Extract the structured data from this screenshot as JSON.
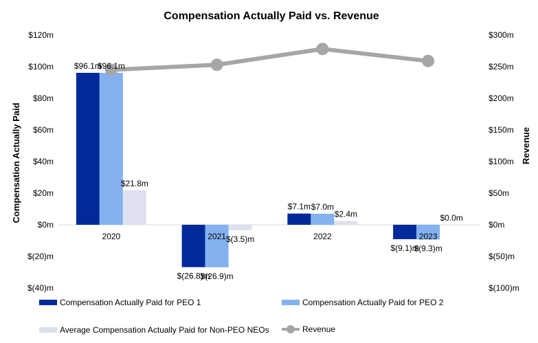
{
  "chart_data": {
    "type": "bar",
    "title": "Compensation Actually Paid vs. Revenue",
    "categories": [
      "2020",
      "2021",
      "2022",
      "2023"
    ],
    "ylabel": "Compensation Actually Paid",
    "y2label": "Revenue",
    "ylim": [
      -40,
      120
    ],
    "y2lim": [
      -100,
      300
    ],
    "yticks": [
      {
        "value": 120,
        "label": "$120m"
      },
      {
        "value": 100,
        "label": "$100m"
      },
      {
        "value": 80,
        "label": "$80m"
      },
      {
        "value": 60,
        "label": "$60m"
      },
      {
        "value": 40,
        "label": "$40m"
      },
      {
        "value": 20,
        "label": "$20m"
      },
      {
        "value": 0,
        "label": "$0m"
      },
      {
        "value": -20,
        "label": "$(20)m"
      },
      {
        "value": -40,
        "label": "$(40)m"
      }
    ],
    "y2ticks": [
      {
        "value": 300,
        "label": "$300m"
      },
      {
        "value": 250,
        "label": "$250m"
      },
      {
        "value": 200,
        "label": "$200m"
      },
      {
        "value": 150,
        "label": "$150m"
      },
      {
        "value": 100,
        "label": "$100m"
      },
      {
        "value": 50,
        "label": "$50m"
      },
      {
        "value": 0,
        "label": "$0m"
      },
      {
        "value": -50,
        "label": "$(50)m"
      },
      {
        "value": -100,
        "label": "$(100)m"
      }
    ],
    "series": [
      {
        "name": "Compensation Actually Paid for PEO 1",
        "kind": "bar",
        "color": "#002a9a",
        "values": [
          96.1,
          -26.8,
          7.1,
          -9.1
        ],
        "labels": [
          "$96.1m",
          "$(26.8)m",
          "$7.1m",
          "$(9.1)m"
        ]
      },
      {
        "name": "Compensation Actually Paid for PEO 2",
        "kind": "bar",
        "color": "#84b2f0",
        "values": [
          96.1,
          -26.9,
          7.0,
          -9.3
        ],
        "labels": [
          "$96.1m",
          "$(26.9)m",
          "$7.0m",
          "$(9.3)m"
        ]
      },
      {
        "name": "Average Compensation Actually Paid for Non-PEO NEOs",
        "kind": "bar",
        "color": "#dde1ef",
        "values": [
          21.8,
          -3.5,
          2.4,
          0.0
        ],
        "labels": [
          "$21.8m",
          "$(3.5)m",
          "$2.4m",
          "$0.0m"
        ]
      },
      {
        "name": "Revenue",
        "kind": "line",
        "axis": "right",
        "color": "#a6a6a6",
        "values": [
          245,
          253,
          278,
          259
        ]
      }
    ],
    "legend_position": "bottom"
  }
}
